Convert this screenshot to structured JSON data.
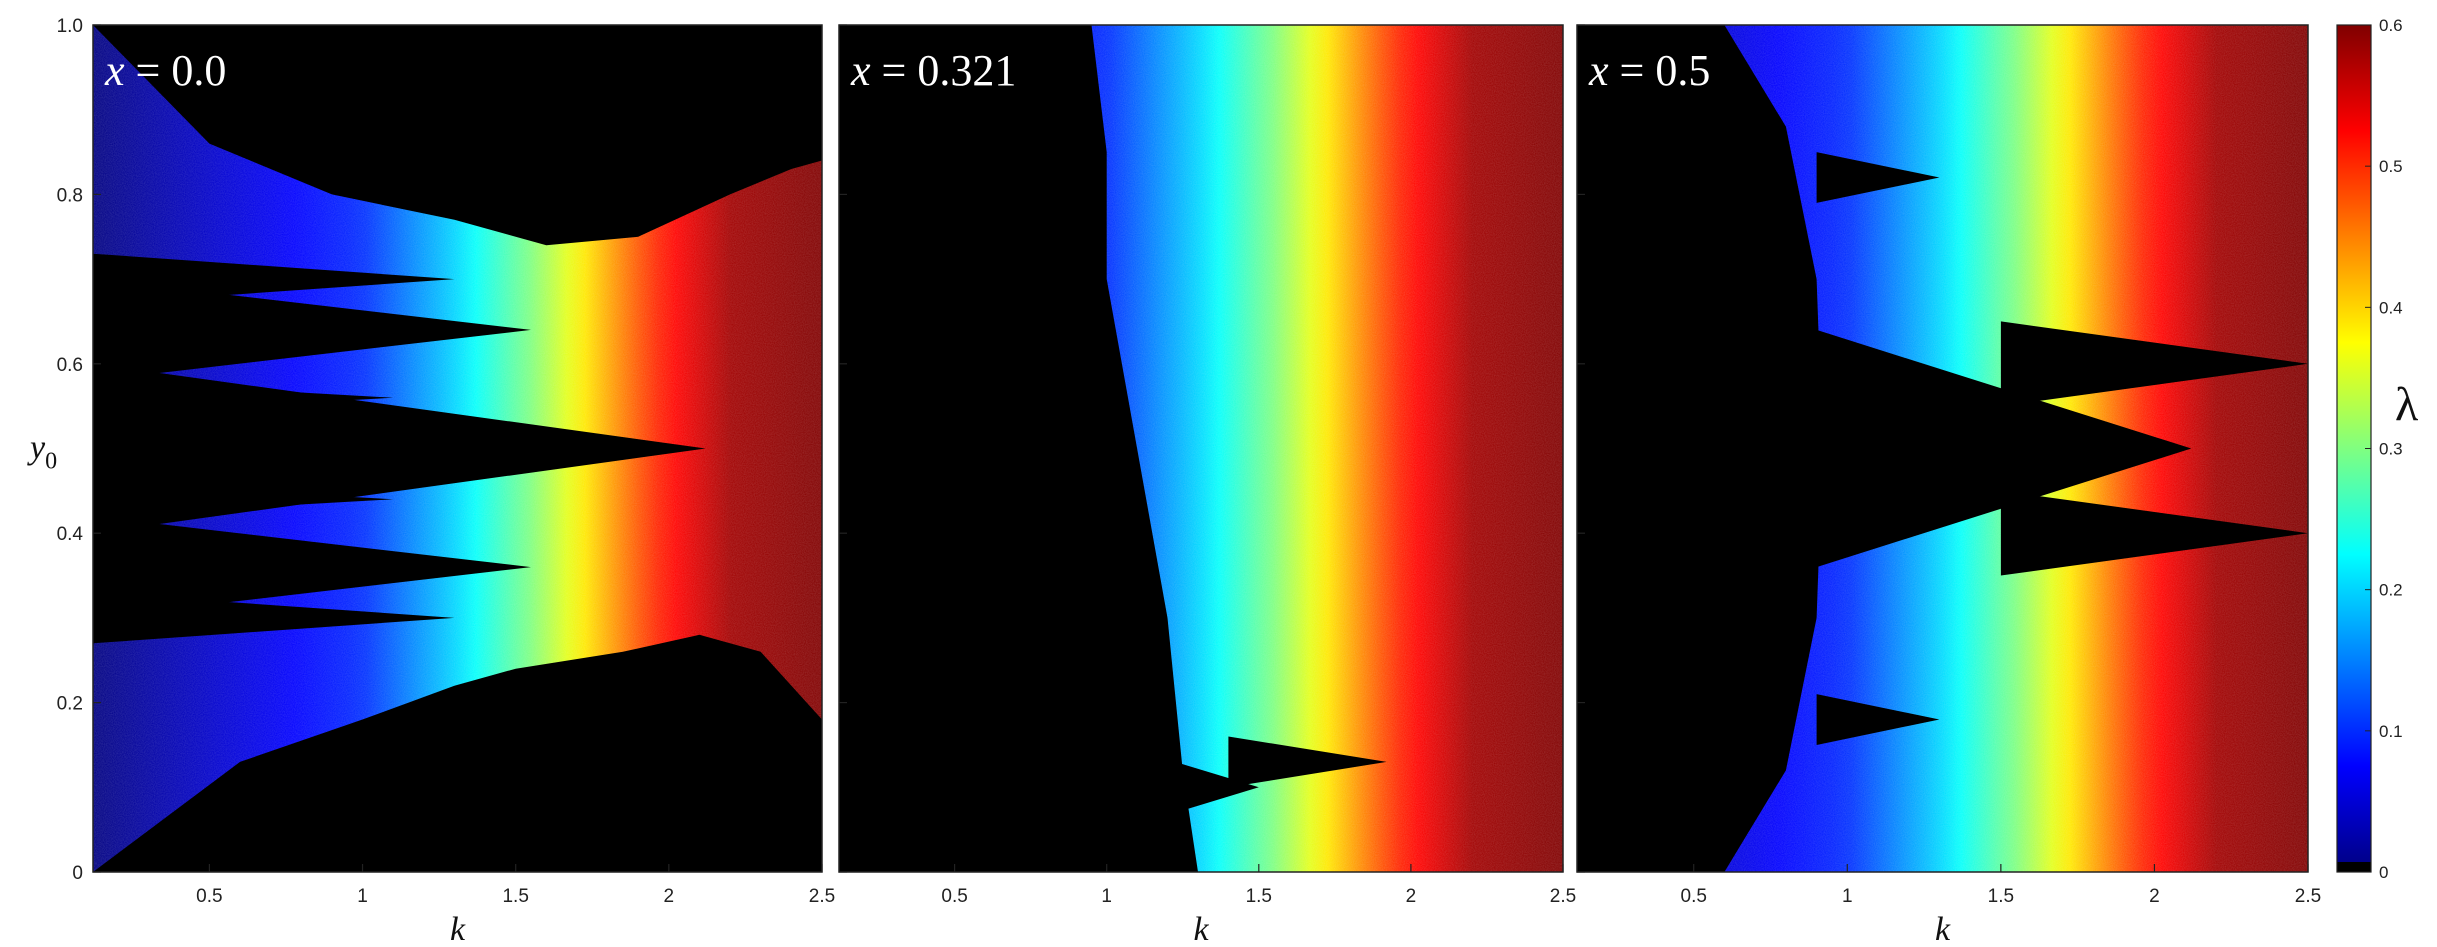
{
  "chart_data": {
    "type": "heatmap",
    "panels": [
      {
        "label_var": "x",
        "label_eq": " = ",
        "label_val": "0.0",
        "xlabel": "k",
        "ylabel": "y",
        "ylabel_sub": "0",
        "xlim": [
          0.12,
          2.5
        ],
        "ylim": [
          0,
          1
        ],
        "xticks": [
          0.5,
          1,
          1.5,
          2,
          2.5
        ],
        "xticklabels": [
          "0.5",
          "1",
          "1.5",
          "2",
          "2.5"
        ],
        "yticks": [
          0,
          0.2,
          0.4,
          0.6,
          0.8,
          1
        ],
        "yticklabels": [
          "0",
          "0.2",
          "0.4",
          "0.6",
          "0.8",
          "1.0"
        ],
        "stable_regions": [
          {
            "left": [
              [
                0.12,
                0.0
              ],
              [
                0.6,
                0.13
              ],
              [
                1.0,
                0.18
              ],
              [
                1.3,
                0.22
              ],
              [
                1.5,
                0.24
              ],
              [
                1.85,
                0.26
              ],
              [
                2.1,
                0.28
              ],
              [
                2.3,
                0.26
              ],
              [
                2.5,
                0.18
              ]
            ],
            "right": 2.5,
            "bottom": 0.0
          },
          {
            "left": [
              [
                0.12,
                1.0
              ],
              [
                0.5,
                0.86
              ],
              [
                0.9,
                0.8
              ],
              [
                1.3,
                0.77
              ],
              [
                1.6,
                0.74
              ],
              [
                1.9,
                0.75
              ],
              [
                2.2,
                0.8
              ],
              [
                2.4,
                0.83
              ],
              [
                2.5,
                0.84
              ]
            ],
            "right": 2.5,
            "top": 1.0
          }
        ],
        "stable_wedges": [
          {
            "y": 0.5,
            "half_width": 0.1,
            "left": 0.12,
            "right": 2.12
          },
          {
            "y": 0.64,
            "half_width": 0.06,
            "left": 0.12,
            "right": 1.55
          },
          {
            "y": 0.36,
            "half_width": 0.06,
            "left": 0.12,
            "right": 1.55
          },
          {
            "y": 0.7,
            "half_width": 0.03,
            "left": 0.12,
            "right": 1.3
          },
          {
            "y": 0.3,
            "half_width": 0.03,
            "left": 0.12,
            "right": 1.3
          },
          {
            "y": 0.56,
            "half_width": 0.02,
            "left": 0.12,
            "right": 1.1
          },
          {
            "y": 0.44,
            "half_width": 0.02,
            "left": 0.12,
            "right": 1.1
          }
        ]
      },
      {
        "label_var": "x",
        "label_eq": " = ",
        "label_val": "0.321",
        "xlabel": "k",
        "ylabel": "",
        "ylabel_sub": "",
        "xlim": [
          0.12,
          2.5
        ],
        "ylim": [
          0,
          1
        ],
        "xticks": [
          0.5,
          1,
          1.5,
          2,
          2.5
        ],
        "xticklabels": [
          "0.5",
          "1",
          "1.5",
          "2",
          "2.5"
        ],
        "yticks": [
          0,
          0.2,
          0.4,
          0.6,
          0.8,
          1
        ],
        "yticklabels": [],
        "stable_regions": [
          {
            "left": [
              [
                0.12,
                0.0
              ],
              [
                1.3,
                0.0
              ]
            ],
            "right_edge": [
              [
                1.3,
                0.0
              ],
              [
                1.25,
                0.12
              ],
              [
                1.2,
                0.3
              ],
              [
                1.1,
                0.5
              ],
              [
                1.0,
                0.7
              ],
              [
                1.0,
                0.85
              ],
              [
                0.95,
                1.0
              ]
            ],
            "top": 1.0
          }
        ],
        "stable_wedges": [
          {
            "y": 0.13,
            "half_width": 0.03,
            "left": 1.4,
            "right": 1.92
          },
          {
            "y": 0.1,
            "half_width": 0.06,
            "left": 0.95,
            "right": 1.5
          }
        ]
      },
      {
        "label_var": "x",
        "label_eq": " = ",
        "label_val": "0.5",
        "xlabel": "k",
        "ylabel": "",
        "ylabel_sub": "",
        "xlim": [
          0.12,
          2.5
        ],
        "ylim": [
          0,
          1
        ],
        "xticks": [
          0.5,
          1,
          1.5,
          2,
          2.5
        ],
        "xticklabels": [
          "0.5",
          "1",
          "1.5",
          "2",
          "2.5"
        ],
        "yticks": [
          0,
          0.2,
          0.4,
          0.6,
          0.8,
          1
        ],
        "yticklabels": [],
        "stable_regions": [
          {
            "left": [
              [
                0.12,
                0.0
              ],
              [
                0.6,
                0.0
              ],
              [
                0.8,
                0.12
              ],
              [
                0.9,
                0.3
              ],
              [
                0.92,
                0.5
              ],
              [
                0.9,
                0.7
              ],
              [
                0.8,
                0.88
              ],
              [
                0.6,
                1.0
              ]
            ],
            "top": 1.0,
            "bottom": 0.0
          }
        ],
        "stable_wedges": [
          {
            "y": 0.5,
            "half_width": 0.14,
            "left": 0.9,
            "right": 2.12
          },
          {
            "y": 0.6,
            "half_width": 0.05,
            "left": 1.5,
            "right": 2.5
          },
          {
            "y": 0.4,
            "half_width": 0.05,
            "left": 1.5,
            "right": 2.5
          },
          {
            "y": 0.82,
            "half_width": 0.03,
            "left": 0.9,
            "right": 1.3
          },
          {
            "y": 0.18,
            "half_width": 0.03,
            "left": 0.9,
            "right": 1.3
          }
        ]
      }
    ],
    "colorbar": {
      "label": "λ",
      "range": [
        0,
        0.6
      ],
      "ticks": [
        0,
        0.1,
        0.2,
        0.3,
        0.4,
        0.5,
        0.6
      ],
      "ticklabels": [
        "0",
        "0.1",
        "0.2",
        "0.3",
        "0.4",
        "0.5",
        "0.6"
      ],
      "colormap": "jet",
      "stable_color": "#000000"
    },
    "lambda_vs_k": [
      [
        0.12,
        0.0
      ],
      [
        1.0,
        0.1
      ],
      [
        1.3,
        0.2
      ],
      [
        1.55,
        0.3
      ],
      [
        1.75,
        0.4
      ],
      [
        1.95,
        0.5
      ],
      [
        2.2,
        0.58
      ],
      [
        2.5,
        0.6
      ]
    ]
  }
}
